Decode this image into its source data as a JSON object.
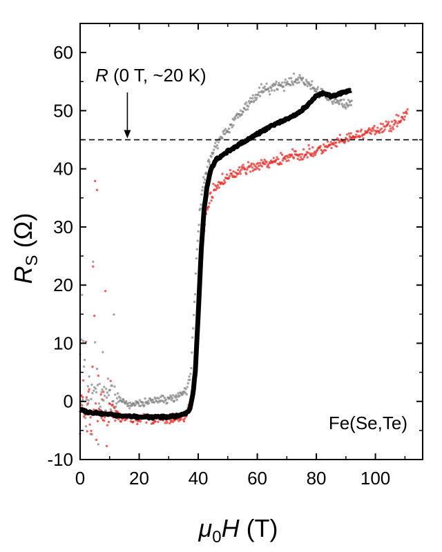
{
  "chart_data": {
    "type": "scatter",
    "x_axis": {
      "label_symbol": "μ",
      "label_subscript": "0",
      "label_var": "H",
      "label_unit": " (T)",
      "lim": [
        0,
        116
      ],
      "ticks": [
        0,
        20,
        40,
        60,
        80,
        100
      ],
      "tick_labels": [
        "0",
        "20",
        "40",
        "60",
        "80",
        "100"
      ]
    },
    "y_axis": {
      "label_var": "R",
      "label_subscript": "S",
      "label_unit": " (Ω)",
      "lim": [
        -10,
        65
      ],
      "ticks": [
        -10,
        0,
        10,
        20,
        30,
        40,
        50,
        60
      ],
      "tick_labels": [
        "-10",
        "0",
        "10",
        "20",
        "30",
        "40",
        "50",
        "60"
      ]
    },
    "grid": false,
    "reference_line": {
      "y": 45,
      "style": "dashed",
      "color": "#000000"
    },
    "annotations": {
      "reference_var": "R",
      "reference_text": " (0 T, ~20 K)",
      "reference_arrow_x": 16,
      "sample": "Fe(Se,Te)"
    },
    "series": [
      {
        "color": "#e8231f",
        "style": "noisy-dots",
        "x": [
          0,
          2,
          5,
          8,
          10,
          13,
          17,
          22,
          28,
          33,
          36,
          38,
          39.5,
          40.5,
          41.5,
          42.5,
          44,
          46,
          50,
          55,
          60,
          65,
          70,
          75,
          80,
          85,
          90,
          95,
          100,
          105,
          108,
          111
        ],
        "y": [
          -1.5,
          -2.0,
          -2.2,
          -2.5,
          -2.6,
          -2.8,
          -3.0,
          -3.0,
          -3.2,
          -3.0,
          -2.5,
          0.0,
          8.0,
          18.0,
          27.0,
          32.0,
          35.0,
          37.0,
          38.5,
          39.8,
          40.5,
          41.0,
          42.0,
          42.5,
          43.0,
          44.0,
          45.0,
          46.0,
          46.5,
          47.5,
          48.5,
          49.5
        ]
      },
      {
        "color": "#7f7f7f",
        "style": "noisy-dots",
        "x": [
          0,
          2,
          5,
          8,
          10,
          13,
          17,
          22,
          28,
          33,
          36,
          37.5,
          38.5,
          39.5,
          40.5,
          42,
          44,
          46,
          50,
          55,
          60,
          65,
          70,
          75,
          80,
          85,
          90,
          92
        ],
        "y": [
          5.0,
          3.0,
          2.0,
          1.0,
          0.5,
          0.0,
          -0.5,
          0.0,
          0.2,
          0.8,
          2.0,
          5.0,
          15.0,
          25.0,
          33.0,
          38.0,
          42.0,
          44.0,
          47.0,
          50.0,
          53.0,
          54.0,
          54.5,
          55.5,
          53.5,
          52.0,
          51.0,
          51.5
        ]
      },
      {
        "color": "#000000",
        "style": "thick-line",
        "x": [
          0,
          5,
          10,
          15,
          20,
          25,
          30,
          35,
          37,
          38,
          39,
          40,
          41,
          42,
          43,
          44,
          46,
          50,
          55,
          60,
          65,
          70,
          75,
          80,
          82,
          85,
          88,
          92
        ],
        "y": [
          -1.5,
          -2.0,
          -2.3,
          -2.5,
          -2.6,
          -2.7,
          -2.7,
          -2.3,
          -1.5,
          0.5,
          5.0,
          15.0,
          26.0,
          33.0,
          37.0,
          39.5,
          41.5,
          43.0,
          44.5,
          46.0,
          47.5,
          48.5,
          50.0,
          52.5,
          53.0,
          52.5,
          53.0,
          53.5
        ]
      }
    ]
  }
}
